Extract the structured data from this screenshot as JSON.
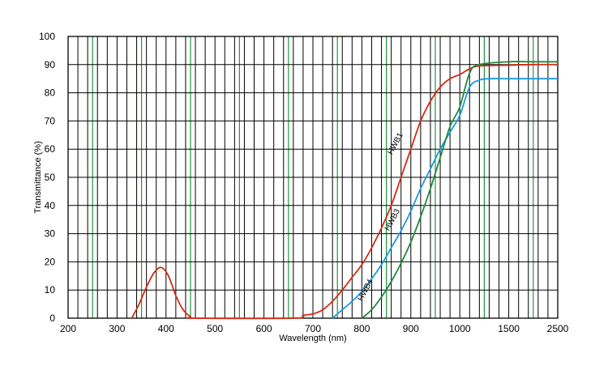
{
  "chart_data": {
    "type": "line",
    "title": "",
    "xlabel": "Wavelength (nm)",
    "ylabel": "Transmittance (%)",
    "ylim": [
      0,
      100
    ],
    "grid": true,
    "x_ticks": [
      "200",
      "300",
      "400",
      "500",
      "600",
      "700",
      "800",
      "900",
      "1000",
      "1500",
      "2500"
    ],
    "y_ticks": [
      "0",
      "10",
      "20",
      "30",
      "40",
      "50",
      "60",
      "70",
      "80",
      "90",
      "100"
    ],
    "x_tick_values": [
      200,
      300,
      400,
      500,
      600,
      700,
      800,
      900,
      1000,
      1500,
      2500
    ],
    "grid_major_color": "#1a9a3c",
    "grid_minor_color": "#000000",
    "series": [
      {
        "name": "HWB1",
        "color": "#d42a12",
        "label_at": [
          868,
          57
        ],
        "x": [
          330,
          345,
          360,
          375,
          390,
          405,
          420,
          435,
          450,
          460,
          660,
          680,
          700,
          720,
          740,
          760,
          780,
          800,
          820,
          840,
          860,
          880,
          900,
          920,
          940,
          960,
          980,
          1000,
          1100,
          1200,
          1500,
          2000,
          2500
        ],
        "y": [
          0,
          5,
          11,
          16,
          18,
          15,
          8,
          3,
          0.5,
          0,
          0,
          1,
          1.5,
          3,
          6,
          10,
          14.5,
          19,
          25,
          32,
          40,
          50,
          60,
          70,
          77,
          82,
          85,
          86.5,
          88.5,
          89.5,
          89.8,
          90,
          90
        ]
      },
      {
        "name": "HWB3",
        "color": "#1a9ae0",
        "label_at": [
          862,
          30
        ],
        "x": [
          740,
          760,
          780,
          800,
          820,
          840,
          860,
          880,
          900,
          920,
          940,
          960,
          980,
          1000,
          1100,
          1200,
          1300,
          1500,
          2000,
          2500
        ],
        "y": [
          0,
          3,
          6,
          9.5,
          14,
          19,
          25,
          31,
          38,
          46,
          53,
          60,
          66,
          72,
          82,
          84.5,
          85,
          85,
          85,
          85
        ]
      },
      {
        "name": "HWB4",
        "color": "#1f8a3c",
        "label_at": [
          807,
          5
        ],
        "x": [
          800,
          820,
          840,
          860,
          880,
          900,
          920,
          940,
          960,
          980,
          1000,
          1100,
          1200,
          1500,
          2000,
          2500
        ],
        "y": [
          0,
          3,
          7.5,
          13,
          19.5,
          27,
          36,
          46,
          57,
          68,
          75,
          87,
          90,
          91,
          91,
          91
        ]
      }
    ]
  }
}
